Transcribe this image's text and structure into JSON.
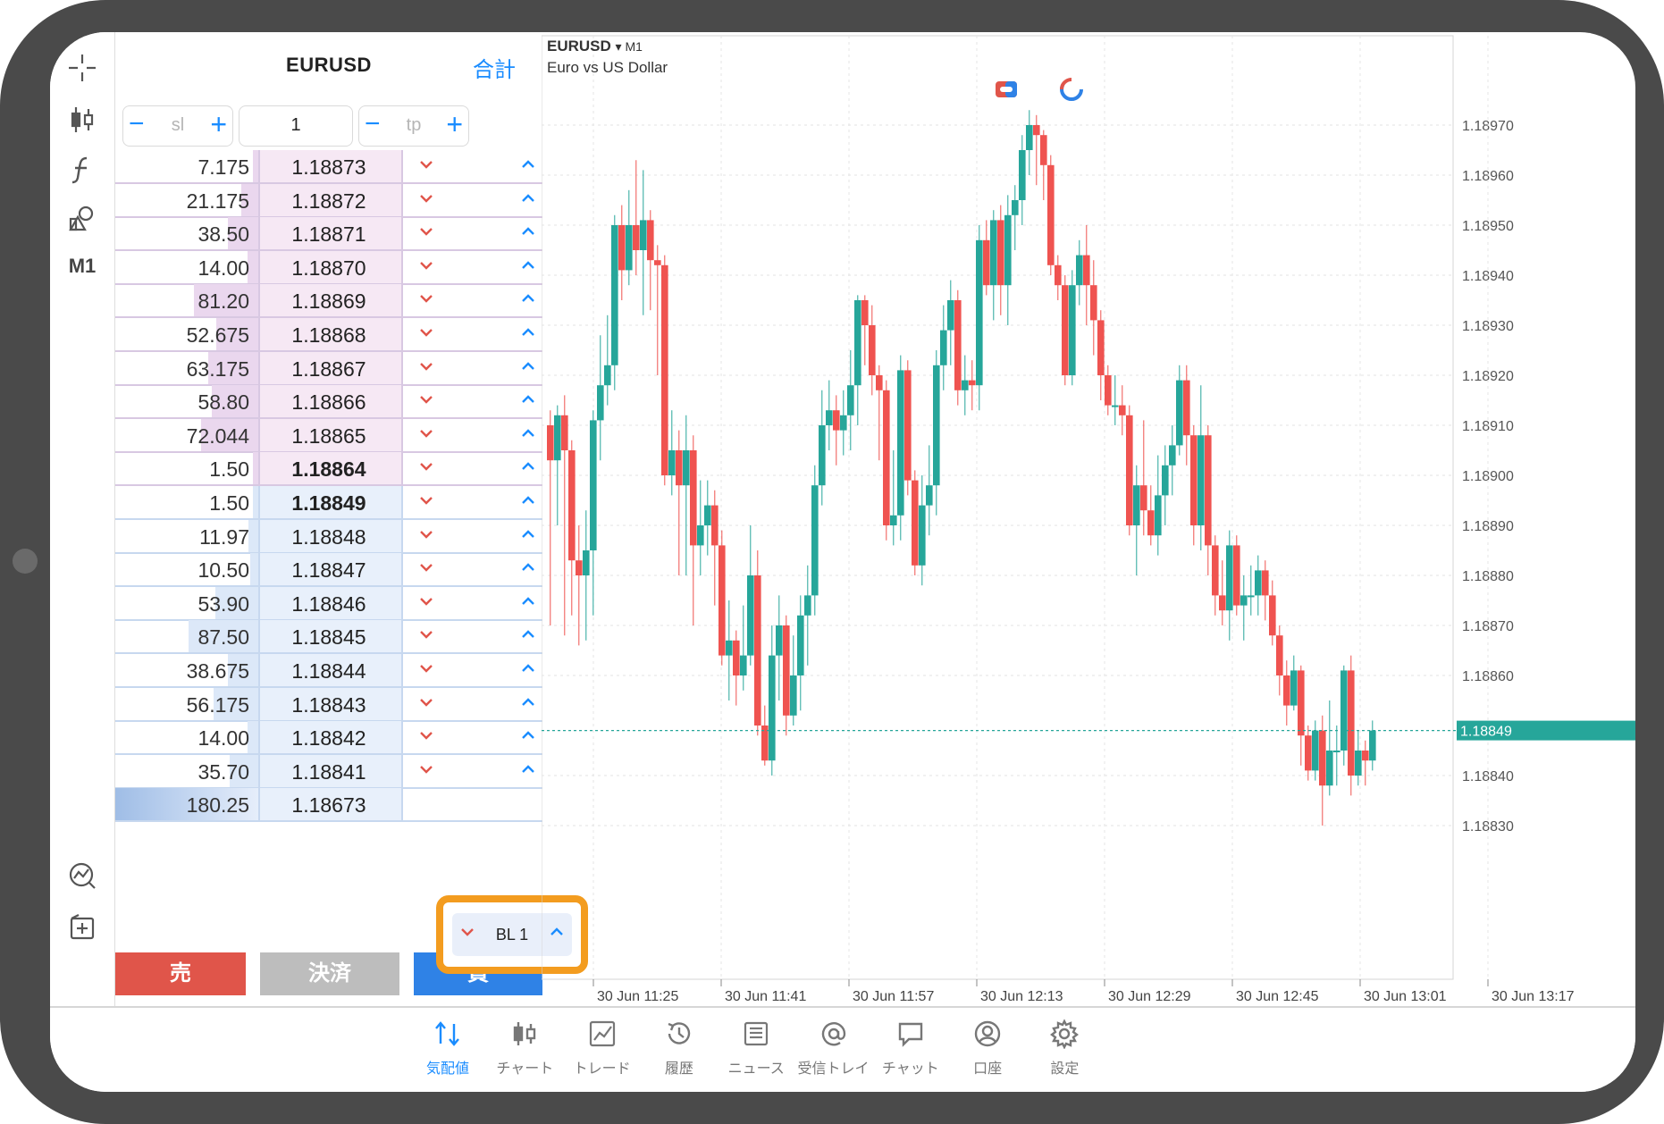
{
  "toolbar": {
    "items": [
      "crosshair-icon",
      "chart-type-icon",
      "indicator-icon",
      "objects-icon"
    ],
    "timeframe": "M1"
  },
  "dom": {
    "symbol": "EURUSD",
    "total_label": "合計",
    "sl_placeholder": "sl",
    "volume_value": "1",
    "tp_placeholder": "tp",
    "asks": [
      {
        "volume": "7.175",
        "price": "1.18873"
      },
      {
        "volume": "21.175",
        "price": "1.18872"
      },
      {
        "volume": "38.50",
        "price": "1.18871"
      },
      {
        "volume": "14.00",
        "price": "1.18870"
      },
      {
        "volume": "81.20",
        "price": "1.18869"
      },
      {
        "volume": "52.675",
        "price": "1.18868"
      },
      {
        "volume": "63.175",
        "price": "1.18867"
      },
      {
        "volume": "58.80",
        "price": "1.18866"
      },
      {
        "volume": "72.044",
        "price": "1.18865"
      },
      {
        "volume": "1.50",
        "price": "1.18864"
      }
    ],
    "bids": [
      {
        "volume": "1.50",
        "price": "1.18849"
      },
      {
        "volume": "11.97",
        "price": "1.18848"
      },
      {
        "volume": "10.50",
        "price": "1.18847"
      },
      {
        "volume": "53.90",
        "price": "1.18846"
      },
      {
        "volume": "87.50",
        "price": "1.18845"
      },
      {
        "volume": "38.675",
        "price": "1.18844"
      },
      {
        "volume": "56.175",
        "price": "1.18843"
      },
      {
        "volume": "14.00",
        "price": "1.18842"
      },
      {
        "volume": "35.70",
        "price": "1.18841"
      },
      {
        "volume": "180.25",
        "price": "1.18673"
      }
    ],
    "sell_label": "売",
    "close_label": "決済",
    "buy_label": "買",
    "popup_label": "BL 1"
  },
  "chart": {
    "symbol": "EURUSD",
    "timeframe_label": "▾ M1",
    "description": "Euro vs US Dollar",
    "price_axis": [
      "1.18970",
      "1.18960",
      "1.18950",
      "1.18940",
      "1.18930",
      "1.18920",
      "1.18910",
      "1.18900",
      "1.18890",
      "1.18880",
      "1.18870",
      "1.18860",
      "1.18840",
      "1.18830"
    ],
    "time_axis": [
      "30 Jun 11:25",
      "30 Jun 11:41",
      "30 Jun 11:57",
      "30 Jun 12:13",
      "30 Jun 12:29",
      "30 Jun 12:45",
      "30 Jun 13:01",
      "30 Jun 13:17"
    ],
    "current_price": "1.18849",
    "up_color": "#26a69a",
    "down_color": "#ef5350"
  },
  "tabs": [
    {
      "label": "気配値",
      "icon": "quotes-icon",
      "active": true
    },
    {
      "label": "チャート",
      "icon": "chart-icon",
      "active": false
    },
    {
      "label": "トレード",
      "icon": "trade-icon",
      "active": false
    },
    {
      "label": "履歴",
      "icon": "history-icon",
      "active": false
    },
    {
      "label": "ニュース",
      "icon": "news-icon",
      "active": false
    },
    {
      "label": "受信トレイ",
      "icon": "mail-icon",
      "active": false
    },
    {
      "label": "チャット",
      "icon": "chat-icon",
      "active": false
    },
    {
      "label": "口座",
      "icon": "account-icon",
      "active": false
    },
    {
      "label": "設定",
      "icon": "settings-icon",
      "active": false
    }
  ]
}
